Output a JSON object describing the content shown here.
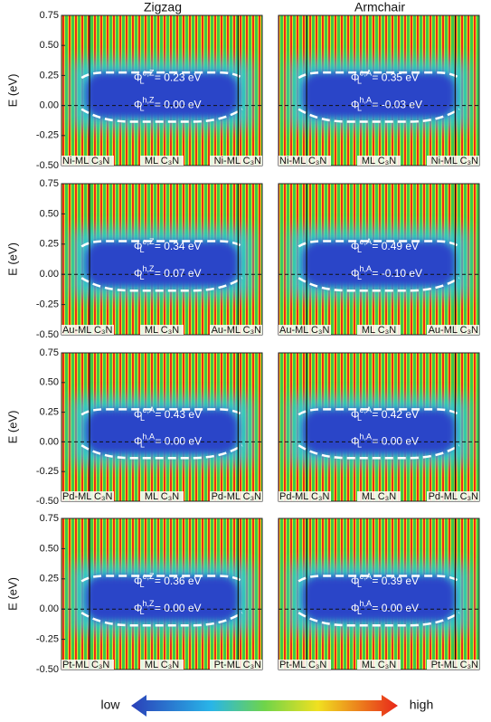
{
  "column_titles": [
    "Zigzag",
    "Armchair"
  ],
  "colorbar": {
    "low": "low",
    "high": "high"
  },
  "chart_data": [
    {
      "type": "heatmap",
      "ylabel": "E (eV)",
      "ylim": [
        -0.5,
        0.75
      ],
      "yticks": [
        0.75,
        {
          "value": 0.5,
          "label": "0.50"
        },
        {
          "value": 0.25,
          "label": "0.25"
        },
        {
          "value": 0,
          "label": "0.00"
        },
        {
          "value": -0.25,
          "label": "-0.25"
        },
        {
          "value": -0.5,
          "label": "-0.50"
        }
      ],
      "reference_line": 0,
      "x_labels": [
        "Ni-ML C₃N",
        "ML C₃N",
        "Ni-ML C₃N"
      ],
      "annotations": [
        {
          "symbol": "Φ",
          "sub": "L",
          "sup": "e,Z",
          "text": " = 0.23 eV"
        },
        {
          "symbol": "Φ",
          "sub": "L",
          "sup": "h,Z",
          "text": " = 0.00 eV"
        }
      ]
    },
    {
      "type": "heatmap",
      "ylim": [
        -0.5,
        0.75
      ],
      "reference_line": 0,
      "x_labels": [
        "Ni-ML C₃N",
        "ML C₃N",
        "Ni-ML C₃N"
      ],
      "annotations": [
        {
          "symbol": "Φ",
          "sub": "L",
          "sup": "e,A",
          "text": " = 0.35 eV"
        },
        {
          "symbol": "Φ",
          "sub": "L",
          "sup": "h,A",
          "text": " = -0.03 eV"
        }
      ]
    },
    {
      "type": "heatmap",
      "ylabel": "E (eV)",
      "ylim": [
        -0.5,
        0.75
      ],
      "yticks": [
        0.75,
        {
          "value": 0.5,
          "label": "0.50"
        },
        {
          "value": 0.25,
          "label": "0.25"
        },
        {
          "value": 0,
          "label": "0.00"
        },
        {
          "value": -0.25,
          "label": "-0.25"
        },
        {
          "value": -0.5,
          "label": "-0.50"
        }
      ],
      "reference_line": 0,
      "x_labels": [
        "Au-ML C₃N",
        "ML C₃N",
        "Au-ML C₃N"
      ],
      "annotations": [
        {
          "symbol": "Φ",
          "sub": "L",
          "sup": "e,Z",
          "text": " = 0.34 eV"
        },
        {
          "symbol": "Φ",
          "sub": "L",
          "sup": "h,Z",
          "text": " = 0.07 eV"
        }
      ]
    },
    {
      "type": "heatmap",
      "ylim": [
        -0.5,
        0.75
      ],
      "reference_line": 0,
      "x_labels": [
        "Au-ML C₃N",
        "ML C₃N",
        "Au-ML C₃N"
      ],
      "annotations": [
        {
          "symbol": "Φ",
          "sub": "L",
          "sup": "e,A",
          "text": " = 0.49 eV"
        },
        {
          "symbol": "Φ",
          "sub": "L",
          "sup": "h,A",
          "text": " = -0.10 eV"
        }
      ]
    },
    {
      "type": "heatmap",
      "ylabel": "E (eV)",
      "ylim": [
        -0.5,
        0.75
      ],
      "yticks": [
        0.75,
        {
          "value": 0.5,
          "label": "0.50"
        },
        {
          "value": 0.25,
          "label": "0.25"
        },
        {
          "value": 0,
          "label": "0.00"
        },
        {
          "value": -0.25,
          "label": "-0.25"
        },
        {
          "value": -0.5,
          "label": "-0.50"
        }
      ],
      "reference_line": 0,
      "x_labels": [
        "Pd-ML C₃N",
        "ML C₃N",
        "Pd-ML C₃N"
      ],
      "annotations": [
        {
          "symbol": "Φ",
          "sub": "L",
          "sup": "e,A",
          "text": " = 0.43 eV"
        },
        {
          "symbol": "Φ",
          "sub": "L",
          "sup": "h,A",
          "text": " = 0.00 eV"
        }
      ]
    },
    {
      "type": "heatmap",
      "ylim": [
        -0.5,
        0.75
      ],
      "reference_line": 0,
      "x_labels": [
        "Pd-ML C₃N",
        "ML C₃N",
        "Pd-ML C₃N"
      ],
      "annotations": [
        {
          "symbol": "Φ",
          "sub": "L",
          "sup": "e,A",
          "text": " = 0.42 eV"
        },
        {
          "symbol": "Φ",
          "sub": "L",
          "sup": "h,A",
          "text": " = 0.00 eV"
        }
      ]
    },
    {
      "type": "heatmap",
      "ylabel": "E (eV)",
      "ylim": [
        -0.5,
        0.75
      ],
      "yticks": [
        0.75,
        {
          "value": 0.5,
          "label": "0.50"
        },
        {
          "value": 0.25,
          "label": "0.25"
        },
        {
          "value": 0,
          "label": "0.00"
        },
        {
          "value": -0.25,
          "label": "-0.25"
        },
        {
          "value": -0.5,
          "label": "-0.50"
        }
      ],
      "reference_line": 0,
      "x_labels": [
        "Pt-ML C₃N",
        "ML C₃N",
        "Pt-ML C₃N"
      ],
      "annotations": [
        {
          "symbol": "Φ",
          "sub": "L",
          "sup": "e,Z",
          "text": " = 0.36 eV"
        },
        {
          "symbol": "Φ",
          "sub": "L",
          "sup": "h,Z",
          "text": " = 0.00 eV"
        }
      ]
    },
    {
      "type": "heatmap",
      "ylim": [
        -0.5,
        0.75
      ],
      "reference_line": 0,
      "x_labels": [
        "Pt-ML C₃N",
        "ML C₃N",
        "Pt-ML C₃N"
      ],
      "annotations": [
        {
          "symbol": "Φ",
          "sub": "L",
          "sup": "e,A",
          "text": " = 0.39 eV"
        },
        {
          "symbol": "Φ",
          "sub": "L",
          "sup": "h,A",
          "text": " = 0.00 eV"
        }
      ]
    }
  ]
}
